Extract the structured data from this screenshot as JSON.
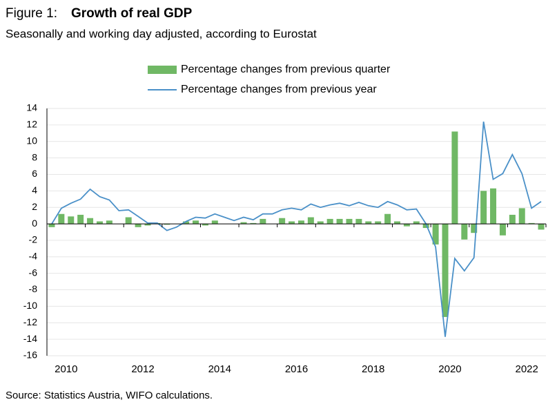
{
  "chart_data": {
    "type": "bar_line",
    "figure_label": "Figure 1:",
    "title": "Growth of real GDP",
    "subtitle": "Seasonally and working day adjusted, according to Eurostat",
    "source": "Source: Statistics Austria, WIFO calculations.",
    "categories": [
      "2010",
      null,
      null,
      null,
      null,
      null,
      null,
      null,
      "2012",
      null,
      null,
      null,
      null,
      null,
      null,
      null,
      "2014",
      null,
      null,
      null,
      null,
      null,
      null,
      null,
      "2016",
      null,
      null,
      null,
      null,
      null,
      null,
      null,
      "2018",
      null,
      null,
      null,
      null,
      null,
      null,
      null,
      "2020",
      null,
      null,
      null,
      null,
      null,
      null,
      null,
      "2022",
      null,
      null,
      null
    ],
    "series": [
      {
        "name": "Percentage changes from previous quarter",
        "color": "#70b865",
        "kind": "bar",
        "values": [
          -0.4,
          1.2,
          0.9,
          1.1,
          0.7,
          0.3,
          0.4,
          0.0,
          0.8,
          -0.4,
          -0.2,
          0.1,
          -0.1,
          0.0,
          0.3,
          0.4,
          -0.2,
          0.4,
          0.0,
          0.0,
          0.2,
          0.1,
          0.6,
          0.0,
          0.7,
          0.3,
          0.4,
          0.8,
          0.3,
          0.6,
          0.6,
          0.6,
          0.6,
          0.3,
          0.3,
          1.2,
          0.3,
          -0.3,
          0.3,
          -0.5,
          -2.5,
          -11.3,
          11.2,
          -1.9,
          -1.1,
          4.0,
          4.3,
          -1.4,
          1.1,
          1.9,
          0.1,
          -0.7
        ]
      },
      {
        "name": "Percentage changes from previous year",
        "color": "#4a90c8",
        "kind": "line",
        "values": [
          0.0,
          1.9,
          2.5,
          3.0,
          4.2,
          3.3,
          2.9,
          1.6,
          1.7,
          0.9,
          0.1,
          0.1,
          -0.8,
          -0.4,
          0.3,
          0.8,
          0.7,
          1.2,
          0.8,
          0.4,
          0.8,
          0.5,
          1.2,
          1.2,
          1.7,
          1.9,
          1.7,
          2.4,
          2.0,
          2.3,
          2.5,
          2.2,
          2.6,
          2.2,
          2.0,
          2.7,
          2.3,
          1.7,
          1.8,
          0.0,
          -2.8,
          -13.7,
          -4.2,
          -5.7,
          -4.1,
          12.4,
          5.4,
          6.1,
          8.4,
          6.1,
          1.9,
          2.7
        ]
      }
    ],
    "ylim": [
      -16,
      14
    ],
    "yticks": [
      -16,
      -14,
      -12,
      -10,
      -8,
      -6,
      -4,
      -2,
      0,
      2,
      4,
      6,
      8,
      10,
      12,
      14
    ],
    "grid": true
  }
}
